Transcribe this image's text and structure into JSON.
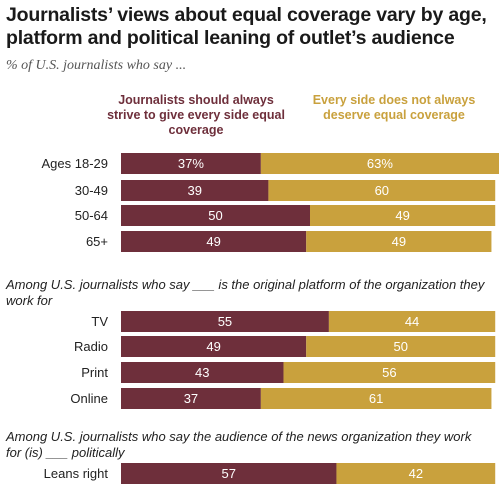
{
  "title": "Journalists’ views about equal coverage vary by age, platform and political leaning of outlet’s audience",
  "subtitle": "% of U.S. journalists who say ...",
  "colors": {
    "left": "#6e2f3b",
    "right": "#c9a13d"
  },
  "chart_data": {
    "type": "bar",
    "orientation": "horizontal-stacked",
    "legend": [
      "Journalists should always strive to give every side equal coverage",
      "Every side does not always deserve equal coverage"
    ],
    "groups": [
      {
        "label": "",
        "rows": [
          {
            "category": "Ages 18-29",
            "left": 37,
            "right": 63,
            "left_label": "37%",
            "right_label": "63%"
          },
          {
            "category": "30-49",
            "left": 39,
            "right": 60,
            "left_label": "39",
            "right_label": "60"
          },
          {
            "category": "50-64",
            "left": 50,
            "right": 49,
            "left_label": "50",
            "right_label": "49"
          },
          {
            "category": "65+",
            "left": 49,
            "right": 49,
            "left_label": "49",
            "right_label": "49"
          }
        ]
      },
      {
        "label": "Among U.S. journalists who say ___ is the original platform of the organization they work for",
        "rows": [
          {
            "category": "TV",
            "left": 55,
            "right": 44,
            "left_label": "55",
            "right_label": "44"
          },
          {
            "category": "Radio",
            "left": 49,
            "right": 50,
            "left_label": "49",
            "right_label": "50"
          },
          {
            "category": "Print",
            "left": 43,
            "right": 56,
            "left_label": "43",
            "right_label": "56"
          },
          {
            "category": "Online",
            "left": 37,
            "right": 61,
            "left_label": "37",
            "right_label": "61"
          }
        ]
      },
      {
        "label": "Among U.S. journalists who say the audience of the news organization they work for (is) ___ politically",
        "rows": [
          {
            "category": "Leans right",
            "left": 57,
            "right": 42,
            "left_label": "57",
            "right_label": "42"
          }
        ]
      }
    ]
  }
}
